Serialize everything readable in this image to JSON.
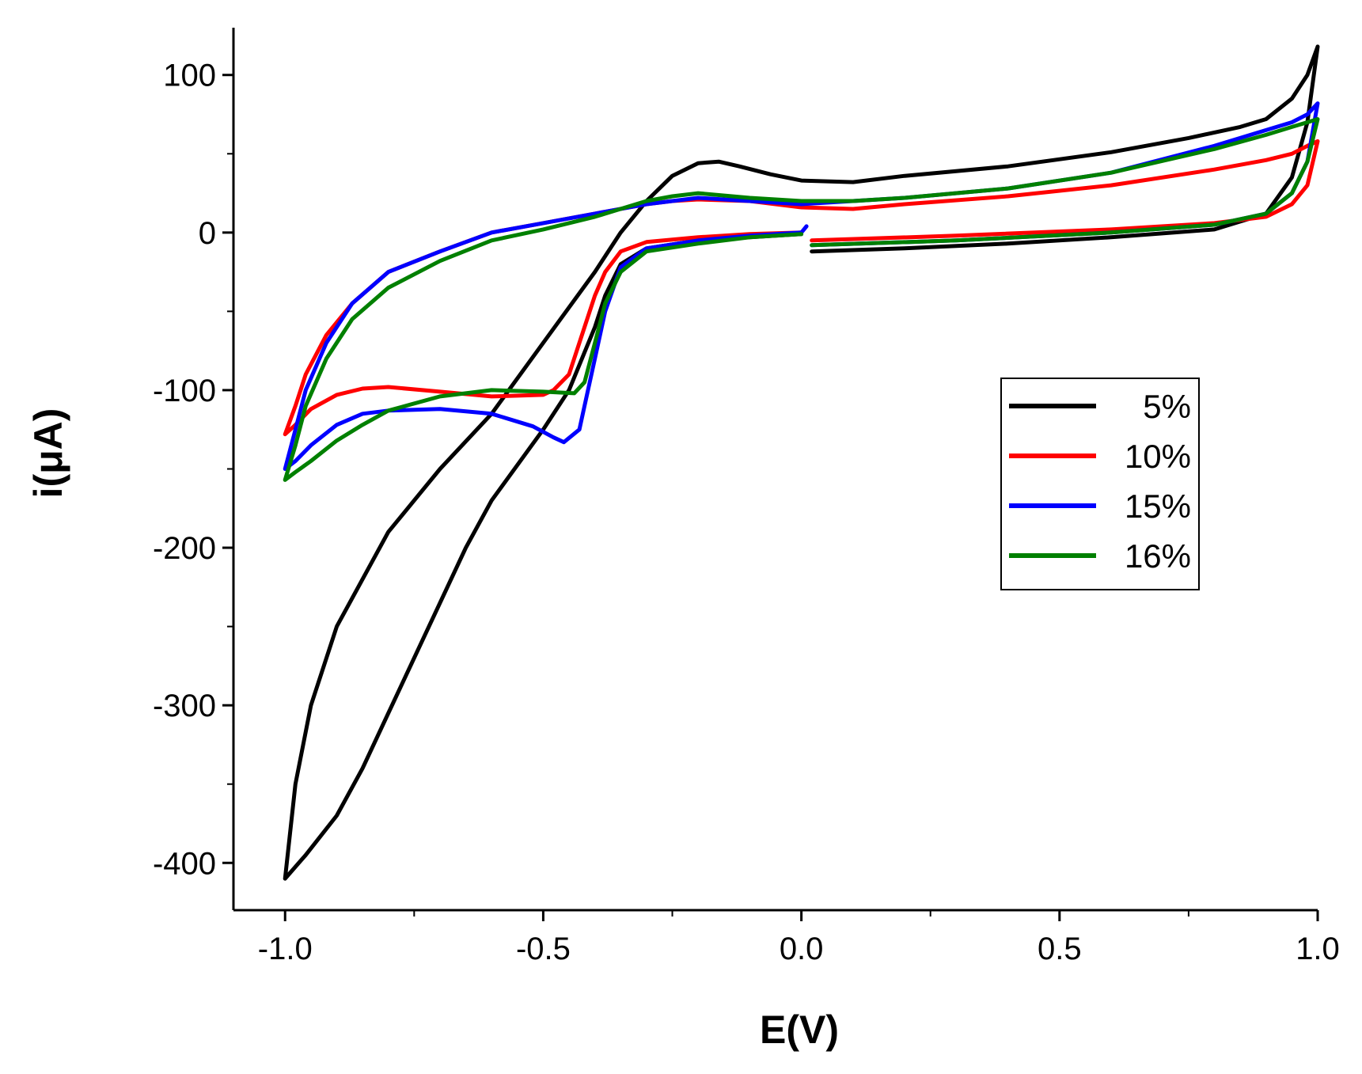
{
  "chart_data": {
    "type": "line",
    "title": "",
    "xlabel": "E(V)",
    "ylabel": "i(μA)",
    "xlim": [
      -1.1,
      1.0
    ],
    "ylim": [
      -430,
      130
    ],
    "xticks": [
      -1.0,
      -0.5,
      0.0,
      0.5,
      1.0
    ],
    "xtick_labels": [
      "-1.0",
      "-0.5",
      "0.0",
      "0.5",
      "1.0"
    ],
    "yticks": [
      -400,
      -300,
      -200,
      -100,
      0,
      100
    ],
    "ytick_labels": [
      "-400",
      "-300",
      "-200",
      "-100",
      "0",
      "100"
    ],
    "grid": false,
    "legend_position": "center-right",
    "series": [
      {
        "name": "5%",
        "color": "#000000",
        "points": [
          [
            0.02,
            -12
          ],
          [
            0.2,
            -10
          ],
          [
            0.4,
            -7
          ],
          [
            0.6,
            -3
          ],
          [
            0.8,
            2
          ],
          [
            0.9,
            12
          ],
          [
            0.95,
            35
          ],
          [
            0.98,
            70
          ],
          [
            1.0,
            118
          ],
          [
            0.98,
            100
          ],
          [
            0.95,
            85
          ],
          [
            0.9,
            72
          ],
          [
            0.85,
            67
          ],
          [
            0.75,
            60
          ],
          [
            0.6,
            51
          ],
          [
            0.4,
            42
          ],
          [
            0.2,
            36
          ],
          [
            0.1,
            32
          ],
          [
            0.0,
            33
          ],
          [
            -0.06,
            37
          ],
          [
            -0.12,
            42
          ],
          [
            -0.16,
            45
          ],
          [
            -0.2,
            44
          ],
          [
            -0.25,
            36
          ],
          [
            -0.3,
            20
          ],
          [
            -0.35,
            0
          ],
          [
            -0.4,
            -25
          ],
          [
            -0.5,
            -70
          ],
          [
            -0.6,
            -115
          ],
          [
            -0.7,
            -150
          ],
          [
            -0.8,
            -190
          ],
          [
            -0.9,
            -250
          ],
          [
            -0.95,
            -300
          ],
          [
            -0.98,
            -350
          ],
          [
            -1.0,
            -410
          ],
          [
            -0.96,
            -395
          ],
          [
            -0.9,
            -370
          ],
          [
            -0.85,
            -340
          ],
          [
            -0.8,
            -305
          ],
          [
            -0.75,
            -270
          ],
          [
            -0.7,
            -235
          ],
          [
            -0.65,
            -200
          ],
          [
            -0.6,
            -170
          ],
          [
            -0.5,
            -125
          ],
          [
            -0.45,
            -100
          ],
          [
            -0.4,
            -60
          ],
          [
            -0.38,
            -40
          ],
          [
            -0.35,
            -20
          ],
          [
            -0.3,
            -10
          ],
          [
            -0.2,
            -5
          ],
          [
            -0.1,
            -3
          ],
          [
            0.0,
            -1
          ]
        ]
      },
      {
        "name": "10%",
        "color": "#ff0000",
        "points": [
          [
            0.02,
            -5
          ],
          [
            0.3,
            -2
          ],
          [
            0.6,
            2
          ],
          [
            0.8,
            6
          ],
          [
            0.9,
            10
          ],
          [
            0.95,
            18
          ],
          [
            0.98,
            30
          ],
          [
            1.0,
            58
          ],
          [
            0.98,
            55
          ],
          [
            0.95,
            50
          ],
          [
            0.9,
            46
          ],
          [
            0.8,
            40
          ],
          [
            0.6,
            30
          ],
          [
            0.4,
            23
          ],
          [
            0.2,
            18
          ],
          [
            0.1,
            15
          ],
          [
            0.0,
            16
          ],
          [
            -0.1,
            20
          ],
          [
            -0.2,
            21
          ],
          [
            -0.25,
            20
          ],
          [
            -0.3,
            18
          ],
          [
            -0.4,
            12
          ],
          [
            -0.5,
            6
          ],
          [
            -0.6,
            0
          ],
          [
            -0.7,
            -12
          ],
          [
            -0.8,
            -25
          ],
          [
            -0.87,
            -45
          ],
          [
            -0.92,
            -65
          ],
          [
            -0.96,
            -90
          ],
          [
            -0.98,
            -110
          ],
          [
            -1.0,
            -128
          ],
          [
            -0.98,
            -122
          ],
          [
            -0.95,
            -112
          ],
          [
            -0.9,
            -103
          ],
          [
            -0.85,
            -99
          ],
          [
            -0.8,
            -98
          ],
          [
            -0.7,
            -101
          ],
          [
            -0.6,
            -104
          ],
          [
            -0.5,
            -103
          ],
          [
            -0.48,
            -100
          ],
          [
            -0.45,
            -90
          ],
          [
            -0.42,
            -60
          ],
          [
            -0.4,
            -40
          ],
          [
            -0.38,
            -25
          ],
          [
            -0.35,
            -12
          ],
          [
            -0.3,
            -6
          ],
          [
            -0.2,
            -3
          ],
          [
            -0.1,
            -1
          ],
          [
            0.0,
            0
          ]
        ]
      },
      {
        "name": "15%",
        "color": "#0000ff",
        "points": [
          [
            0.02,
            -8
          ],
          [
            0.3,
            -5
          ],
          [
            0.6,
            0
          ],
          [
            0.8,
            5
          ],
          [
            0.9,
            12
          ],
          [
            0.95,
            25
          ],
          [
            0.98,
            45
          ],
          [
            1.0,
            82
          ],
          [
            0.98,
            75
          ],
          [
            0.95,
            70
          ],
          [
            0.9,
            65
          ],
          [
            0.8,
            55
          ],
          [
            0.6,
            38
          ],
          [
            0.4,
            28
          ],
          [
            0.2,
            22
          ],
          [
            0.1,
            20
          ],
          [
            0.0,
            18
          ],
          [
            -0.1,
            20
          ],
          [
            -0.2,
            22
          ],
          [
            -0.25,
            20
          ],
          [
            -0.3,
            18
          ],
          [
            -0.4,
            12
          ],
          [
            -0.5,
            6
          ],
          [
            -0.6,
            0
          ],
          [
            -0.7,
            -12
          ],
          [
            -0.8,
            -25
          ],
          [
            -0.87,
            -45
          ],
          [
            -0.92,
            -70
          ],
          [
            -0.96,
            -100
          ],
          [
            -0.98,
            -125
          ],
          [
            -1.0,
            -150
          ],
          [
            -0.98,
            -145
          ],
          [
            -0.95,
            -135
          ],
          [
            -0.9,
            -122
          ],
          [
            -0.85,
            -115
          ],
          [
            -0.8,
            -113
          ],
          [
            -0.7,
            -112
          ],
          [
            -0.6,
            -115
          ],
          [
            -0.52,
            -123
          ],
          [
            -0.48,
            -130
          ],
          [
            -0.46,
            -133
          ],
          [
            -0.43,
            -125
          ],
          [
            -0.42,
            -110
          ],
          [
            -0.4,
            -80
          ],
          [
            -0.38,
            -50
          ],
          [
            -0.35,
            -22
          ],
          [
            -0.3,
            -10
          ],
          [
            -0.2,
            -5
          ],
          [
            -0.1,
            -2
          ],
          [
            0.0,
            0
          ],
          [
            0.01,
            4
          ]
        ]
      },
      {
        "name": "16%",
        "color": "#008000",
        "points": [
          [
            0.02,
            -8
          ],
          [
            0.3,
            -5
          ],
          [
            0.6,
            0
          ],
          [
            0.8,
            5
          ],
          [
            0.9,
            12
          ],
          [
            0.95,
            25
          ],
          [
            0.98,
            45
          ],
          [
            1.0,
            72
          ],
          [
            0.98,
            70
          ],
          [
            0.95,
            67
          ],
          [
            0.9,
            62
          ],
          [
            0.8,
            53
          ],
          [
            0.6,
            38
          ],
          [
            0.4,
            28
          ],
          [
            0.2,
            22
          ],
          [
            0.1,
            20
          ],
          [
            0.0,
            20
          ],
          [
            -0.1,
            22
          ],
          [
            -0.2,
            25
          ],
          [
            -0.25,
            23
          ],
          [
            -0.3,
            20
          ],
          [
            -0.4,
            10
          ],
          [
            -0.5,
            2
          ],
          [
            -0.6,
            -5
          ],
          [
            -0.7,
            -18
          ],
          [
            -0.8,
            -35
          ],
          [
            -0.87,
            -55
          ],
          [
            -0.92,
            -80
          ],
          [
            -0.96,
            -110
          ],
          [
            -0.98,
            -135
          ],
          [
            -1.0,
            -157
          ],
          [
            -0.98,
            -152
          ],
          [
            -0.95,
            -145
          ],
          [
            -0.9,
            -132
          ],
          [
            -0.85,
            -122
          ],
          [
            -0.8,
            -113
          ],
          [
            -0.7,
            -104
          ],
          [
            -0.6,
            -100
          ],
          [
            -0.5,
            -101
          ],
          [
            -0.44,
            -102
          ],
          [
            -0.42,
            -95
          ],
          [
            -0.4,
            -70
          ],
          [
            -0.38,
            -45
          ],
          [
            -0.35,
            -25
          ],
          [
            -0.3,
            -12
          ],
          [
            -0.2,
            -7
          ],
          [
            -0.1,
            -3
          ],
          [
            0.0,
            -1
          ]
        ]
      }
    ]
  }
}
